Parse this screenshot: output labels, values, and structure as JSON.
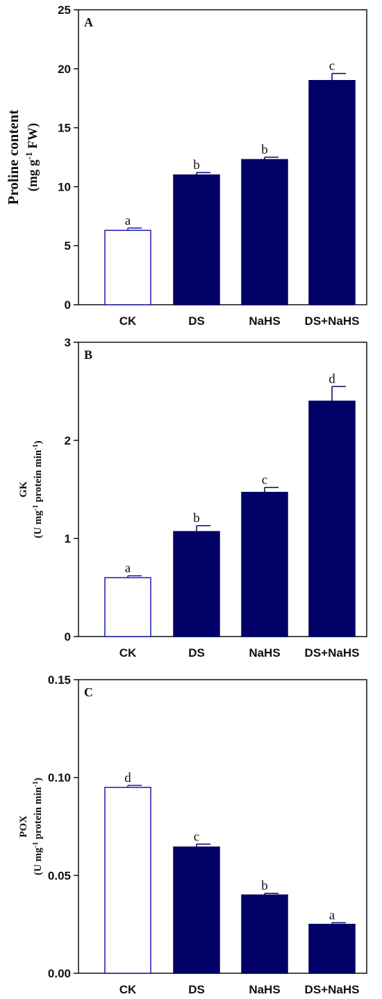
{
  "colors": {
    "filled": "#000066",
    "outline": "#1a1ab0",
    "axis": "#111111"
  },
  "chart_data": [
    {
      "type": "bar",
      "panel": "A",
      "categories": [
        "CK",
        "DS",
        "NaHS",
        "DS+NaHS"
      ],
      "values": [
        6.3,
        11.0,
        12.3,
        19.0
      ],
      "errors": [
        0.2,
        0.2,
        0.2,
        0.6
      ],
      "significance": [
        "a",
        "b",
        "b",
        "c"
      ],
      "ylabel_line1": "Proline content",
      "ylabel_line2_pre": "(mg g",
      "ylabel_line2_sup": "-1",
      "ylabel_line2_post": " FW)",
      "ylim": [
        0,
        25
      ],
      "yticks": [
        "0",
        "5",
        "10",
        "15",
        "20",
        "25"
      ],
      "ytick_values": [
        0,
        5,
        10,
        15,
        20,
        25
      ]
    },
    {
      "type": "bar",
      "panel": "B",
      "categories": [
        "CK",
        "DS",
        "NaHS",
        "DS+NaHS"
      ],
      "values": [
        0.6,
        1.07,
        1.47,
        2.4
      ],
      "errors": [
        0.02,
        0.06,
        0.05,
        0.15
      ],
      "significance": [
        "a",
        "b",
        "c",
        "d"
      ],
      "ylabel_line1": "GK",
      "ylabel_line2_pre": "(U mg",
      "ylabel_line2_sup": "-1",
      "ylabel_line2_mid": " protein min",
      "ylabel_line2_sup2": "-1",
      "ylabel_line2_post": ")",
      "ylim": [
        0,
        3
      ],
      "yticks": [
        "0",
        "1",
        "2",
        "3"
      ],
      "ytick_values": [
        0,
        1,
        2,
        3
      ]
    },
    {
      "type": "bar",
      "panel": "C",
      "categories": [
        "CK",
        "DS",
        "NaHS",
        "DS+NaHS"
      ],
      "values": [
        0.095,
        0.0645,
        0.04,
        0.025
      ],
      "errors": [
        0.001,
        0.0015,
        0.0008,
        0.0008
      ],
      "significance": [
        "d",
        "c",
        "b",
        "a"
      ],
      "ylabel_line1": "POX",
      "ylabel_line2_pre": "(U mg",
      "ylabel_line2_sup": "-1",
      "ylabel_line2_mid": " protein min",
      "ylabel_line2_sup2": "-1",
      "ylabel_line2_post": ")",
      "ylim": [
        0,
        0.15
      ],
      "yticks": [
        "0.00",
        "0.05",
        "0.10",
        "0.15"
      ],
      "ytick_values": [
        0,
        0.05,
        0.1,
        0.15
      ]
    }
  ]
}
